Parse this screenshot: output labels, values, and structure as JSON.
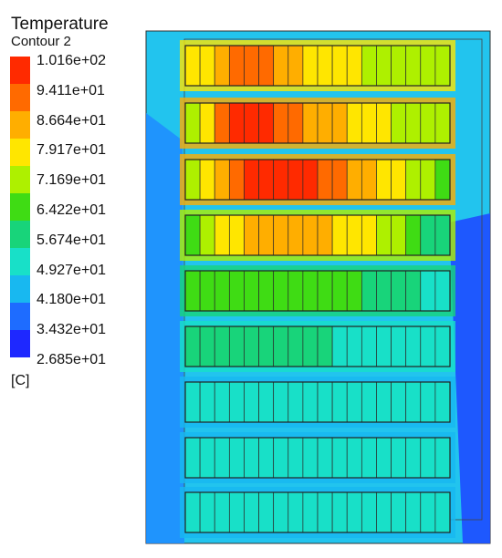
{
  "legend": {
    "title": "Temperature",
    "subtitle": "Contour 2",
    "unit": "[C]",
    "levels": [
      "1.016e+02",
      "9.411e+01",
      "8.664e+01",
      "7.917e+01",
      "7.169e+01",
      "6.422e+01",
      "5.674e+01",
      "4.927e+01",
      "4.180e+01",
      "3.432e+01",
      "2.685e+01"
    ],
    "colors": [
      "#ff2a00",
      "#ff6a00",
      "#ffae00",
      "#ffe600",
      "#aef000",
      "#3fdc14",
      "#18d47a",
      "#18e0c8",
      "#18b8f0",
      "#1e6cff",
      "#1e28ff"
    ]
  },
  "chart_data": {
    "type": "heatmap",
    "title": "Temperature",
    "subtitle": "Contour 2",
    "unit": "C",
    "range": [
      26.85,
      101.6
    ],
    "legend_placement": "left",
    "grid_rows": 9,
    "grid_cols": 18,
    "row_avg_temperature": [
      82,
      92,
      95,
      78,
      64,
      55,
      50,
      48,
      48
    ]
  }
}
